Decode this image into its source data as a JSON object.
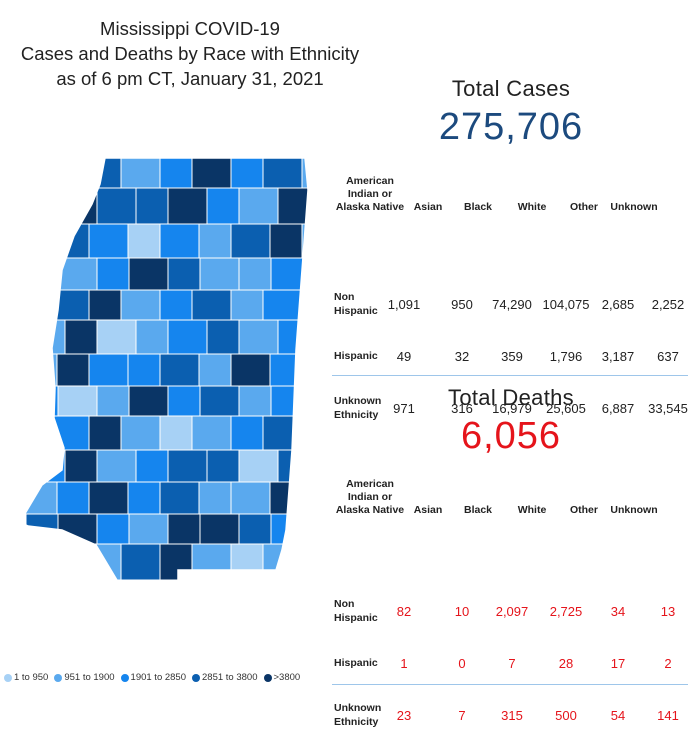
{
  "title": {
    "line1": "Mississippi COVID-19",
    "line2": "Cases and Deaths by Race with Ethnicity",
    "line3": "as of 6 pm CT, January 31, 2021"
  },
  "legend": [
    {
      "label": "1 to 950",
      "color": "#a7d1f5"
    },
    {
      "label": "951 to 1900",
      "color": "#5aa9ee"
    },
    {
      "label": "1901 to 2850",
      "color": "#1585ee"
    },
    {
      "label": "2851 to 3800",
      "color": "#0b5fb0"
    },
    {
      "label": ">3800",
      "color": "#0a3566"
    }
  ],
  "columns": [
    "American Indian or Alaska Native",
    "Asian",
    "Black",
    "White",
    "Other",
    "Unknown"
  ],
  "columns_lines": [
    [
      "American",
      "Indian or",
      "Alaska Native"
    ],
    [
      "Asian"
    ],
    [
      "Black"
    ],
    [
      "White"
    ],
    [
      "Other"
    ],
    [
      "Unknown"
    ]
  ],
  "cases": {
    "heading": "Total Cases",
    "total": "275,706",
    "rows": [
      {
        "label_lines": [
          "Non",
          "Hispanic"
        ],
        "values": [
          "1,091",
          "950",
          "74,290",
          "104,075",
          "2,685",
          "2,252"
        ]
      },
      {
        "label_lines": [
          "Hispanic"
        ],
        "values": [
          "49",
          "32",
          "359",
          "1,796",
          "3,187",
          "637"
        ]
      },
      {
        "label_lines": [
          "Unknown",
          "Ethnicity"
        ],
        "values": [
          "971",
          "316",
          "16,979",
          "25,605",
          "6,887",
          "33,545"
        ]
      }
    ]
  },
  "deaths": {
    "heading": "Total Deaths",
    "total": "6,056",
    "rows": [
      {
        "label_lines": [
          "Non",
          "Hispanic"
        ],
        "values": [
          "82",
          "10",
          "2,097",
          "2,725",
          "34",
          "13"
        ]
      },
      {
        "label_lines": [
          "Hispanic"
        ],
        "values": [
          "1",
          "0",
          "7",
          "28",
          "17",
          "2"
        ]
      },
      {
        "label_lines": [
          "Unknown",
          "Ethnicity"
        ],
        "values": [
          "23",
          "7",
          "315",
          "500",
          "54",
          "141"
        ]
      }
    ]
  },
  "map": {
    "region": "Mississippi",
    "counties_by_tier": [
      4,
      1,
      4,
      2,
      3,
      5,
      3,
      4,
      2,
      2,
      5,
      4,
      4,
      5,
      3,
      2,
      5,
      5,
      4,
      3,
      1,
      3,
      2,
      4,
      5,
      2,
      1,
      2,
      3,
      5,
      4,
      2,
      2,
      3,
      1,
      4,
      5,
      2,
      3,
      4,
      2,
      3,
      3,
      2,
      5,
      1,
      2,
      3,
      4,
      2,
      3,
      2,
      5,
      3,
      3,
      4,
      2,
      5,
      3,
      2,
      3,
      1,
      2,
      5,
      3,
      4,
      2,
      3,
      2,
      3,
      5,
      2,
      1,
      2,
      3,
      4,
      2,
      3,
      5,
      2,
      3,
      4
    ]
  }
}
